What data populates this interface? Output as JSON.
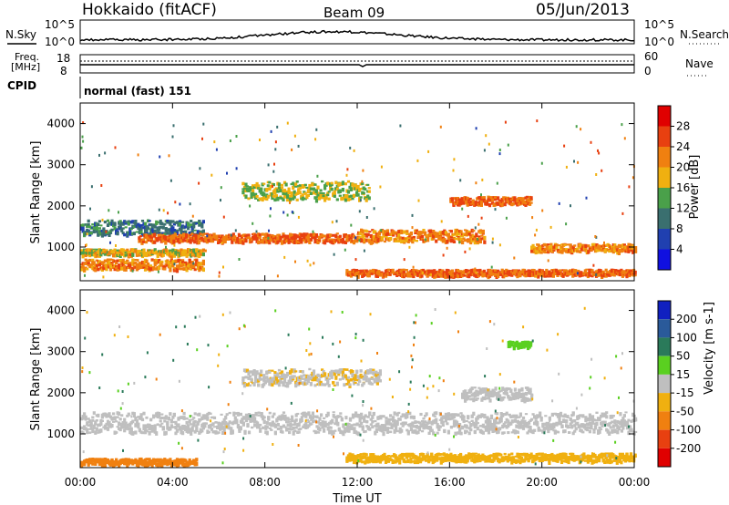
{
  "header": {
    "station": "Hokkaido (fitACF)",
    "beam": "Beam 09",
    "date": "05/Jun/2013"
  },
  "noise_panel": {
    "left_label": "N.Sky",
    "right_label": "N.Search",
    "left_ticks": [
      "10^5",
      "10^0"
    ],
    "right_ticks": [
      "10^5",
      "10^0"
    ]
  },
  "freq_panel": {
    "left_label_1": "Freq.",
    "left_label_2": "[MHz]",
    "right_label": "Nave",
    "left_ticks": [
      "18",
      "8"
    ],
    "right_ticks": [
      "60",
      "0"
    ]
  },
  "cpid": {
    "label": "CPID",
    "text": "normal (fast) 151"
  },
  "time_axis": {
    "label": "Time UT",
    "ticks": [
      "00:00",
      "04:00",
      "08:00",
      "12:00",
      "16:00",
      "20:00",
      "00:00"
    ]
  },
  "range_axis": {
    "label": "Slant Range [km]",
    "ticks": [
      "1000",
      "2000",
      "3000",
      "4000"
    ]
  },
  "power_scale": {
    "label": "Power [dB]",
    "ticks": [
      "4",
      "8",
      "12",
      "16",
      "20",
      "24",
      "28"
    ],
    "colors": [
      "#1010e0",
      "#2040b0",
      "#3a6f6f",
      "#4aa04a",
      "#f0b010",
      "#f08010",
      "#e84010",
      "#e00000"
    ]
  },
  "velocity_scale": {
    "label": "Velocity [m s-1]",
    "ticks": [
      "200",
      "100",
      "50",
      "15",
      "-15",
      "-50",
      "-100",
      "-200"
    ],
    "colors": [
      "#1020c0",
      "#2a5a9a",
      "#2a7a5a",
      "#5ad020",
      "#bfbfbf",
      "#f0b010",
      "#f08010",
      "#e84010",
      "#e00000"
    ]
  },
  "chart_data": {
    "type": "heatmap",
    "title": "Hokkaido (fitACF)",
    "subtitle": "Beam 09",
    "xlabel": "Time UT",
    "ylabel": "Slant Range [km]",
    "xlim": [
      "00:00",
      "24:00"
    ],
    "ylim": [
      180,
      4500
    ],
    "echo_bands_power": [
      {
        "from_h": 0.0,
        "to_h": 5.3,
        "km": 600,
        "width_km": 250,
        "db": 26
      },
      {
        "from_h": 0.0,
        "to_h": 5.3,
        "km": 900,
        "width_km": 150,
        "db": 22
      },
      {
        "from_h": 0.0,
        "to_h": 5.3,
        "km": 1500,
        "width_km": 350,
        "db": 14
      },
      {
        "from_h": 2.5,
        "to_h": 12.0,
        "km": 1250,
        "width_km": 200,
        "db": 28
      },
      {
        "from_h": 7.0,
        "to_h": 12.5,
        "km": 2400,
        "width_km": 450,
        "db": 20
      },
      {
        "from_h": 12.0,
        "to_h": 17.5,
        "km": 1300,
        "width_km": 300,
        "db": 26
      },
      {
        "from_h": 16.0,
        "to_h": 19.5,
        "km": 2150,
        "width_km": 200,
        "db": 28
      },
      {
        "from_h": 19.5,
        "to_h": 24.0,
        "km": 1000,
        "width_km": 200,
        "db": 26
      },
      {
        "from_h": 11.5,
        "to_h": 24.0,
        "km": 400,
        "width_km": 150,
        "db": 28
      }
    ],
    "echo_bands_velocity": [
      {
        "from_h": 0.0,
        "to_h": 24.0,
        "km": 1300,
        "width_km": 500,
        "ms": 0
      },
      {
        "from_h": 0.0,
        "to_h": 5.0,
        "km": 350,
        "width_km": 150,
        "ms": -60
      },
      {
        "from_h": 7.0,
        "to_h": 13.0,
        "km": 2400,
        "width_km": 400,
        "ms": -10
      },
      {
        "from_h": 16.5,
        "to_h": 19.5,
        "km": 2000,
        "width_km": 300,
        "ms": 0
      },
      {
        "from_h": 18.5,
        "to_h": 19.5,
        "km": 3200,
        "width_km": 150,
        "ms": 40
      },
      {
        "from_h": 11.5,
        "to_h": 24.0,
        "km": 450,
        "width_km": 200,
        "ms": -30
      }
    ]
  }
}
